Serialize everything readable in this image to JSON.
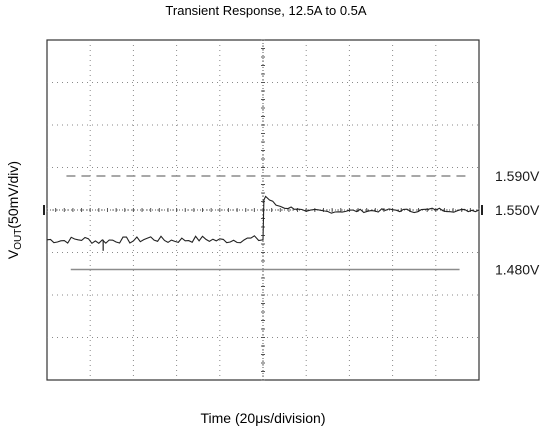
{
  "chart_data": {
    "type": "line",
    "title": "Transient Response, 12.5A to 0.5A",
    "ylabel": {
      "main": "V",
      "subscript": "OUT",
      "rest": "(50mV/div)"
    },
    "xlabel": {
      "prefix": "Time (20",
      "mu": "μ",
      "suffix": "s/division)"
    },
    "x_divisions": 10,
    "y_divisions": 8,
    "grid": true,
    "grid_style": "dotted",
    "ylim_mV": [
      -200,
      200
    ],
    "center_reference": "1.550V",
    "reference_lines": [
      {
        "label": "1.590V",
        "offset_mV": 40,
        "style": "dashed"
      },
      {
        "label": "1.550V",
        "offset_mV": 0,
        "style": "marker"
      },
      {
        "label": "1.480V",
        "offset_mV": -70,
        "style": "solid"
      }
    ],
    "series": [
      {
        "x": [
          0,
          0.4,
          0.8,
          1.2,
          1.6,
          2.0,
          2.4,
          2.8,
          3.2,
          3.6,
          4.0,
          4.4,
          4.8,
          5.0,
          5.02,
          5.06,
          5.15,
          5.3,
          5.5,
          5.8,
          6.0,
          6.2,
          6.5,
          7.0,
          7.5,
          8.0,
          8.5,
          9.0,
          9.5,
          10.0
        ],
        "y_mV": [
          -35,
          -36,
          -34,
          -37,
          -35,
          -36,
          -33,
          -36,
          -35,
          -34,
          -36,
          -35,
          -34,
          -35,
          12,
          16,
          12,
          6,
          3,
          2,
          -3,
          -1,
          -2,
          -1,
          -1,
          0,
          -1,
          1,
          -1,
          0
        ]
      }
    ]
  }
}
